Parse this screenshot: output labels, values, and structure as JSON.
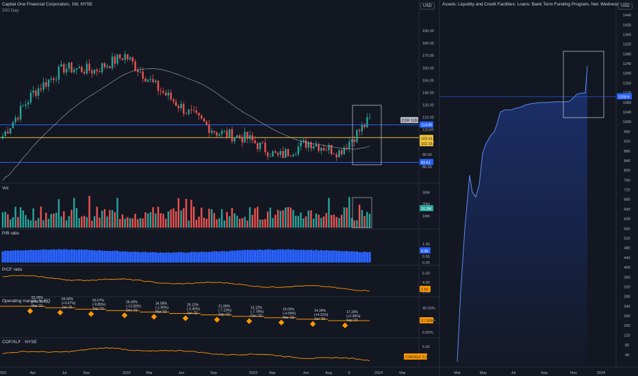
{
  "left_panel": {
    "title": "Capital One Financial Corporation, 1W, NYSE",
    "indicator": "200 Day",
    "currency": "USD",
    "price_axis": [
      "190.00",
      "180.00",
      "170.00",
      "160.00",
      "150.00",
      "140.00",
      "130.00",
      "120.00",
      "110.00",
      "100.00",
      "90.00",
      "80.00"
    ],
    "tags": {
      "upper_line": "113.95",
      "price": "COF 118.09",
      "yellow1": "103.61",
      "yellow2": "102.15",
      "lower_line": "83.61"
    },
    "volume": {
      "label": "Vol",
      "axis": [
        "30M",
        "20M",
        "10M"
      ],
      "tag": "16.3M"
    },
    "pb": {
      "label": "P/B ratio",
      "axis": [
        "1.50",
        "1.00",
        "0.50",
        "0.00"
      ],
      "tag": "0.95"
    },
    "pcf": {
      "label": "P/CF ratio",
      "axis": [
        "6.00",
        "4.00",
        "2.00"
      ],
      "tag": "2.52"
    },
    "opm": {
      "label": "Operating margin, % FQ",
      "axis": [
        "40.00%",
        "20.00%",
        "0.00%"
      ],
      "tag": "17.33%",
      "annotations": [
        {
          "pct": "53.26%",
          "chg": "(+50.61%)",
          "date": "Mar '21"
        },
        {
          "pct": "59.92%",
          "chg": "(+3.67%)",
          "date": "Jun '21"
        },
        {
          "pct": "50.07%",
          "chg": "(-9.85%)",
          "date": "Sep '21"
        },
        {
          "pct": "36.49%",
          "chg": "(-13.58%)",
          "date": "Dec '21"
        },
        {
          "pct": "34.58%",
          "chg": "(-1.90%)",
          "date": "Mar '22"
        },
        {
          "pct": "29.12%",
          "chg": "(-5.46%)",
          "date": "Jun '22"
        },
        {
          "pct": "21.90%",
          "chg": "(-7.23%)",
          "date": "Sep '22"
        },
        {
          "pct": "14.12%",
          "chg": "(-7.78%)",
          "date": "Dec '22"
        },
        {
          "pct": "10.03%",
          "chg": "(-4.09%)",
          "date": "Mar '23"
        },
        {
          "pct": "14.34%",
          "chg": "(+4.31%)",
          "date": "Jun '23"
        },
        {
          "pct": "17.33%",
          "chg": "(+2.99%)",
          "date": "Sep '23"
        }
      ]
    },
    "ratio": {
      "label": "COF/XLF · NYSE",
      "tag": "COF/XLF 3.37",
      "axis": [
        "5.00"
      ]
    },
    "time_axis": [
      "2021",
      "Apr",
      "Jul",
      "Sep",
      "2022",
      "Mar",
      "Jun",
      "Sep",
      "2023",
      "Mar",
      "Jun",
      "Aug",
      "9",
      "2024",
      "Mar"
    ]
  },
  "right_panel": {
    "title": "Assets: Liquidity and Credit Facilities: Loans: Bank Term Funding Program, Net: Wednesday Level, 1W, Federal Reserve",
    "currency": "USD",
    "price_axis": [
      "1440",
      "1400",
      "1360",
      "1320",
      "1280",
      "1240",
      "1200",
      "1160",
      "1120",
      "1080",
      "1040",
      "1000",
      "960",
      "920",
      "880",
      "840",
      "800",
      "760",
      "720",
      "680",
      "640",
      "600",
      "560",
      "520",
      "480",
      "440",
      "400",
      "360",
      "320",
      "280",
      "240",
      "200",
      "160",
      "120",
      "80",
      "40"
    ],
    "tag": "1103.9",
    "time_axis": [
      "Mar",
      "May",
      "Jul",
      "Sep",
      "Nov",
      "2024"
    ]
  },
  "chart_data": [
    {
      "type": "line",
      "title": "Capital One Financial Corporation, 1W, NYSE",
      "x": [
        "2021",
        "Apr",
        "Jul",
        "Sep",
        "2022",
        "Mar",
        "Jun",
        "Sep",
        "2023",
        "Mar",
        "Jun",
        "Aug",
        "2024"
      ],
      "series": [
        {
          "name": "COF",
          "values": [
            105,
            140,
            160,
            158,
            170,
            145,
            125,
            108,
            103,
            88,
            100,
            92,
            118
          ]
        }
      ],
      "ylim": [
        80,
        190
      ]
    },
    {
      "type": "line",
      "title": "Assets: Liquidity and Credit Facilities: Loans: Bank Term Funding Program, Net: Wednesday Level, 1W, Federal Reserve",
      "x": [
        "Mar",
        "May",
        "Jul",
        "Sep",
        "Nov",
        "2024"
      ],
      "series": [
        {
          "name": "BTFP",
          "values": [
            11,
            780,
            1040,
            1080,
            1115,
            1230
          ]
        }
      ],
      "ylim": [
        0,
        1460
      ]
    }
  ],
  "colors": {
    "up": "#26a69a",
    "down": "#ef5350",
    "blue": "#2962ff",
    "orange": "#ff9800",
    "yellow": "#f0c43a"
  }
}
